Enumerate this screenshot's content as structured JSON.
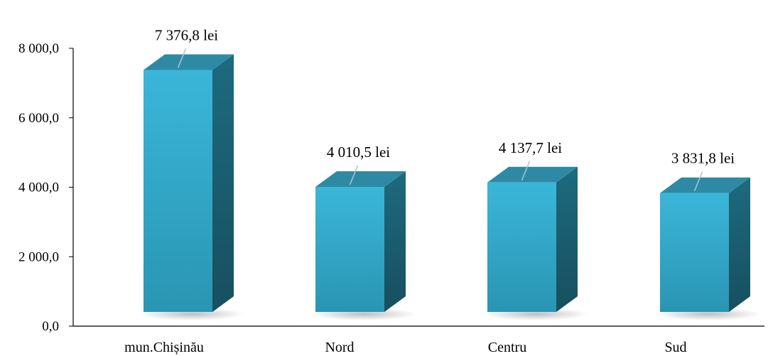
{
  "chart_data": {
    "type": "bar",
    "style": "3d-column",
    "categories": [
      "mun.Chișinău",
      "Nord",
      "Centru",
      "Sud"
    ],
    "values": [
      7376.8,
      4010.5,
      4137.7,
      3831.8
    ],
    "data_labels": [
      "7 376,8 lei",
      "4 010,5 lei",
      "4 137,7 lei",
      "3 831,8 lei"
    ],
    "y_ticks": [
      {
        "value": 0,
        "label": "0,0"
      },
      {
        "value": 2000,
        "label": "2 000,0"
      },
      {
        "value": 4000,
        "label": "4 000,0"
      },
      {
        "value": 6000,
        "label": "6 000,0"
      },
      {
        "value": 8000,
        "label": "8 000,0"
      }
    ],
    "ylim": [
      0,
      8000
    ],
    "grid": false,
    "legend": "none",
    "colors": {
      "front_top": "#3ab6d9",
      "front_bottom": "#2a95b3",
      "side": "#1d6a7f",
      "top": "#2e8aa4",
      "leader": "#a9c6d6",
      "axis": "#000000"
    }
  }
}
